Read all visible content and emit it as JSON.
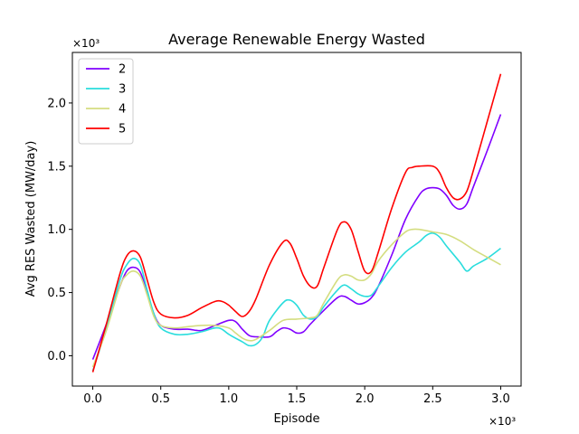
{
  "chart_data": {
    "type": "line",
    "title": "Average Renewable Energy Wasted",
    "xlabel": "Episode",
    "ylabel": "Avg RES Wasted (MW/day)",
    "x_multiplier_label": "×10³",
    "y_multiplier_label": "×10³",
    "xlim": [
      -0.15,
      3.15
    ],
    "ylim": [
      -0.24,
      2.4
    ],
    "x_ticks": [
      0.0,
      0.5,
      1.0,
      1.5,
      2.0,
      2.5,
      3.0
    ],
    "x_tick_labels": [
      "0.0",
      "0.5",
      "1.0",
      "1.5",
      "2.0",
      "2.5",
      "3.0"
    ],
    "y_ticks": [
      0.0,
      0.5,
      1.0,
      1.5,
      2.0
    ],
    "y_tick_labels": [
      "0.0",
      "0.5",
      "1.0",
      "1.5",
      "2.0"
    ],
    "grid": false,
    "legend_position": "top-left",
    "series": [
      {
        "name": "2",
        "color": "#8000ff",
        "points": [
          [
            0.0,
            -0.03
          ],
          [
            0.1,
            0.25
          ],
          [
            0.2,
            0.55
          ],
          [
            0.25,
            0.67
          ],
          [
            0.3,
            0.7
          ],
          [
            0.35,
            0.66
          ],
          [
            0.4,
            0.5
          ],
          [
            0.45,
            0.33
          ],
          [
            0.5,
            0.24
          ],
          [
            0.6,
            0.21
          ],
          [
            0.7,
            0.21
          ],
          [
            0.8,
            0.2
          ],
          [
            0.9,
            0.24
          ],
          [
            1.0,
            0.28
          ],
          [
            1.05,
            0.27
          ],
          [
            1.1,
            0.21
          ],
          [
            1.15,
            0.16
          ],
          [
            1.2,
            0.15
          ],
          [
            1.3,
            0.15
          ],
          [
            1.35,
            0.19
          ],
          [
            1.4,
            0.22
          ],
          [
            1.45,
            0.21
          ],
          [
            1.5,
            0.18
          ],
          [
            1.55,
            0.19
          ],
          [
            1.6,
            0.25
          ],
          [
            1.7,
            0.36
          ],
          [
            1.8,
            0.46
          ],
          [
            1.85,
            0.47
          ],
          [
            1.9,
            0.44
          ],
          [
            1.95,
            0.41
          ],
          [
            2.0,
            0.42
          ],
          [
            2.05,
            0.46
          ],
          [
            2.1,
            0.55
          ],
          [
            2.2,
            0.8
          ],
          [
            2.3,
            1.08
          ],
          [
            2.4,
            1.27
          ],
          [
            2.45,
            1.32
          ],
          [
            2.5,
            1.33
          ],
          [
            2.55,
            1.32
          ],
          [
            2.6,
            1.27
          ],
          [
            2.65,
            1.19
          ],
          [
            2.7,
            1.16
          ],
          [
            2.75,
            1.2
          ],
          [
            2.8,
            1.34
          ],
          [
            2.9,
            1.62
          ],
          [
            3.0,
            1.91
          ]
        ]
      },
      {
        "name": "3",
        "color": "#2adddd",
        "points": [
          [
            0.0,
            -0.12
          ],
          [
            0.1,
            0.22
          ],
          [
            0.2,
            0.6
          ],
          [
            0.25,
            0.72
          ],
          [
            0.3,
            0.77
          ],
          [
            0.35,
            0.72
          ],
          [
            0.4,
            0.52
          ],
          [
            0.45,
            0.33
          ],
          [
            0.5,
            0.22
          ],
          [
            0.6,
            0.17
          ],
          [
            0.7,
            0.17
          ],
          [
            0.8,
            0.19
          ],
          [
            0.9,
            0.22
          ],
          [
            0.95,
            0.21
          ],
          [
            1.0,
            0.17
          ],
          [
            1.1,
            0.11
          ],
          [
            1.15,
            0.08
          ],
          [
            1.2,
            0.09
          ],
          [
            1.25,
            0.15
          ],
          [
            1.3,
            0.28
          ],
          [
            1.4,
            0.42
          ],
          [
            1.45,
            0.44
          ],
          [
            1.5,
            0.4
          ],
          [
            1.55,
            0.32
          ],
          [
            1.6,
            0.29
          ],
          [
            1.65,
            0.31
          ],
          [
            1.7,
            0.39
          ],
          [
            1.8,
            0.52
          ],
          [
            1.85,
            0.56
          ],
          [
            1.9,
            0.53
          ],
          [
            1.95,
            0.49
          ],
          [
            2.0,
            0.47
          ],
          [
            2.05,
            0.48
          ],
          [
            2.1,
            0.55
          ],
          [
            2.2,
            0.7
          ],
          [
            2.3,
            0.82
          ],
          [
            2.4,
            0.9
          ],
          [
            2.45,
            0.95
          ],
          [
            2.5,
            0.97
          ],
          [
            2.55,
            0.94
          ],
          [
            2.6,
            0.87
          ],
          [
            2.7,
            0.74
          ],
          [
            2.75,
            0.67
          ],
          [
            2.8,
            0.71
          ],
          [
            2.9,
            0.77
          ],
          [
            3.0,
            0.85
          ]
        ]
      },
      {
        "name": "4",
        "color": "#d4dd80",
        "points": [
          [
            0.0,
            -0.09
          ],
          [
            0.1,
            0.2
          ],
          [
            0.2,
            0.55
          ],
          [
            0.25,
            0.64
          ],
          [
            0.3,
            0.67
          ],
          [
            0.35,
            0.63
          ],
          [
            0.4,
            0.48
          ],
          [
            0.45,
            0.31
          ],
          [
            0.5,
            0.24
          ],
          [
            0.6,
            0.22
          ],
          [
            0.7,
            0.23
          ],
          [
            0.8,
            0.24
          ],
          [
            0.9,
            0.24
          ],
          [
            1.0,
            0.22
          ],
          [
            1.05,
            0.18
          ],
          [
            1.1,
            0.14
          ],
          [
            1.15,
            0.12
          ],
          [
            1.2,
            0.13
          ],
          [
            1.3,
            0.2
          ],
          [
            1.4,
            0.28
          ],
          [
            1.5,
            0.29
          ],
          [
            1.6,
            0.3
          ],
          [
            1.65,
            0.32
          ],
          [
            1.7,
            0.42
          ],
          [
            1.8,
            0.6
          ],
          [
            1.85,
            0.64
          ],
          [
            1.9,
            0.63
          ],
          [
            1.95,
            0.6
          ],
          [
            2.0,
            0.6
          ],
          [
            2.05,
            0.65
          ],
          [
            2.1,
            0.75
          ],
          [
            2.2,
            0.88
          ],
          [
            2.3,
            0.98
          ],
          [
            2.35,
            1.0
          ],
          [
            2.4,
            1.0
          ],
          [
            2.5,
            0.98
          ],
          [
            2.6,
            0.96
          ],
          [
            2.7,
            0.91
          ],
          [
            2.8,
            0.84
          ],
          [
            2.9,
            0.78
          ],
          [
            3.0,
            0.72
          ]
        ]
      },
      {
        "name": "5",
        "color": "#ff0000",
        "points": [
          [
            0.0,
            -0.13
          ],
          [
            0.1,
            0.25
          ],
          [
            0.2,
            0.65
          ],
          [
            0.25,
            0.79
          ],
          [
            0.3,
            0.83
          ],
          [
            0.35,
            0.78
          ],
          [
            0.4,
            0.6
          ],
          [
            0.45,
            0.42
          ],
          [
            0.5,
            0.33
          ],
          [
            0.6,
            0.3
          ],
          [
            0.7,
            0.32
          ],
          [
            0.8,
            0.38
          ],
          [
            0.9,
            0.43
          ],
          [
            0.95,
            0.43
          ],
          [
            1.0,
            0.4
          ],
          [
            1.05,
            0.35
          ],
          [
            1.1,
            0.31
          ],
          [
            1.15,
            0.35
          ],
          [
            1.2,
            0.45
          ],
          [
            1.3,
            0.72
          ],
          [
            1.4,
            0.9
          ],
          [
            1.45,
            0.89
          ],
          [
            1.5,
            0.77
          ],
          [
            1.55,
            0.63
          ],
          [
            1.6,
            0.55
          ],
          [
            1.65,
            0.55
          ],
          [
            1.7,
            0.7
          ],
          [
            1.8,
            1.0
          ],
          [
            1.85,
            1.06
          ],
          [
            1.9,
            1.0
          ],
          [
            1.95,
            0.83
          ],
          [
            2.0,
            0.67
          ],
          [
            2.05,
            0.67
          ],
          [
            2.1,
            0.82
          ],
          [
            2.2,
            1.17
          ],
          [
            2.3,
            1.45
          ],
          [
            2.35,
            1.49
          ],
          [
            2.4,
            1.5
          ],
          [
            2.5,
            1.5
          ],
          [
            2.55,
            1.45
          ],
          [
            2.6,
            1.33
          ],
          [
            2.65,
            1.25
          ],
          [
            2.7,
            1.24
          ],
          [
            2.75,
            1.3
          ],
          [
            2.8,
            1.47
          ],
          [
            2.9,
            1.85
          ],
          [
            3.0,
            2.23
          ]
        ]
      }
    ]
  }
}
